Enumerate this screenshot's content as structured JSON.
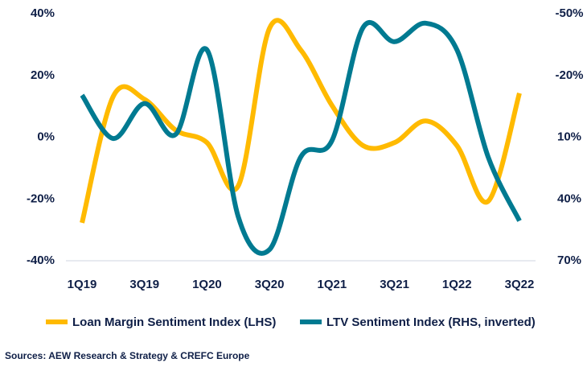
{
  "chart_data": {
    "type": "line",
    "categories": [
      "1Q19",
      "2Q19",
      "3Q19",
      "4Q19",
      "1Q20",
      "2Q20",
      "3Q20",
      "4Q20",
      "1Q21",
      "2Q21",
      "3Q21",
      "4Q21",
      "1Q22",
      "2Q22",
      "3Q22"
    ],
    "x_tick_labels": [
      "1Q19",
      "3Q19",
      "1Q20",
      "3Q20",
      "1Q21",
      "3Q21",
      "1Q22",
      "3Q22"
    ],
    "y_left": {
      "range": [
        -40,
        40
      ],
      "ticks": [
        "40%",
        "20%",
        "0%",
        "-20%",
        "-40%"
      ]
    },
    "y_right": {
      "range": [
        -50,
        70
      ],
      "inverted": true,
      "ticks": [
        "-50%",
        "-20%",
        "10%",
        "40%",
        "70%"
      ]
    },
    "series": [
      {
        "name": "Loan Margin Sentiment Index (LHS)",
        "axis": "left",
        "color": "#ffba00",
        "values": [
          -28,
          13,
          12,
          2,
          -2,
          -16,
          35,
          28,
          10,
          -3,
          -2,
          5,
          -3,
          -21,
          14
        ]
      },
      {
        "name": "LTV Sentiment Index (RHS, inverted)",
        "axis": "right",
        "color": "#007a91",
        "values": [
          -10,
          11,
          -6,
          9,
          -32,
          49,
          65,
          20,
          12,
          -43,
          -36,
          -45,
          -32,
          20,
          51
        ]
      }
    ],
    "grid": false,
    "legend_position": "bottom",
    "source": "Sources: AEW Research & Strategy & CREFC Europe"
  }
}
